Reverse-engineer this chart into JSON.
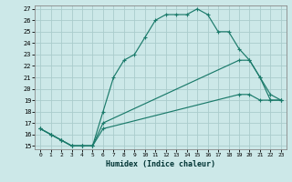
{
  "xlabel": "Humidex (Indice chaleur)",
  "bg_color": "#cce8e8",
  "grid_color": "#aacccc",
  "line_color": "#1a7a6a",
  "xlim": [
    0,
    23
  ],
  "ylim": [
    15,
    27
  ],
  "xticks": [
    0,
    1,
    2,
    3,
    4,
    5,
    6,
    7,
    8,
    9,
    10,
    11,
    12,
    13,
    14,
    15,
    16,
    17,
    18,
    19,
    20,
    21,
    22,
    23
  ],
  "yticks": [
    15,
    16,
    17,
    18,
    19,
    20,
    21,
    22,
    23,
    24,
    25,
    26,
    27
  ],
  "line1_x": [
    0,
    1,
    2,
    3,
    4,
    5,
    6,
    7,
    8,
    9,
    10,
    11,
    12,
    13,
    14,
    15,
    16,
    17,
    18,
    19,
    20,
    21,
    22,
    23
  ],
  "line1_y": [
    16.5,
    16.0,
    15.5,
    15.0,
    15.0,
    15.0,
    18.0,
    21.0,
    22.5,
    23.0,
    24.5,
    26.0,
    26.5,
    26.5,
    26.5,
    27.0,
    26.5,
    25.0,
    25.0,
    23.5,
    22.5,
    21.0,
    19.0,
    19.0
  ],
  "line2_x": [
    0,
    1,
    2,
    3,
    4,
    5,
    6,
    19,
    20,
    21,
    22,
    23
  ],
  "line2_y": [
    16.5,
    16.0,
    15.5,
    15.0,
    15.0,
    15.0,
    17.0,
    22.5,
    22.5,
    21.0,
    19.5,
    19.0
  ],
  "line3_x": [
    0,
    1,
    2,
    3,
    4,
    5,
    6,
    19,
    20,
    21,
    22,
    23
  ],
  "line3_y": [
    16.5,
    16.0,
    15.5,
    15.0,
    15.0,
    15.0,
    16.5,
    19.5,
    19.5,
    19.0,
    19.0,
    19.0
  ]
}
